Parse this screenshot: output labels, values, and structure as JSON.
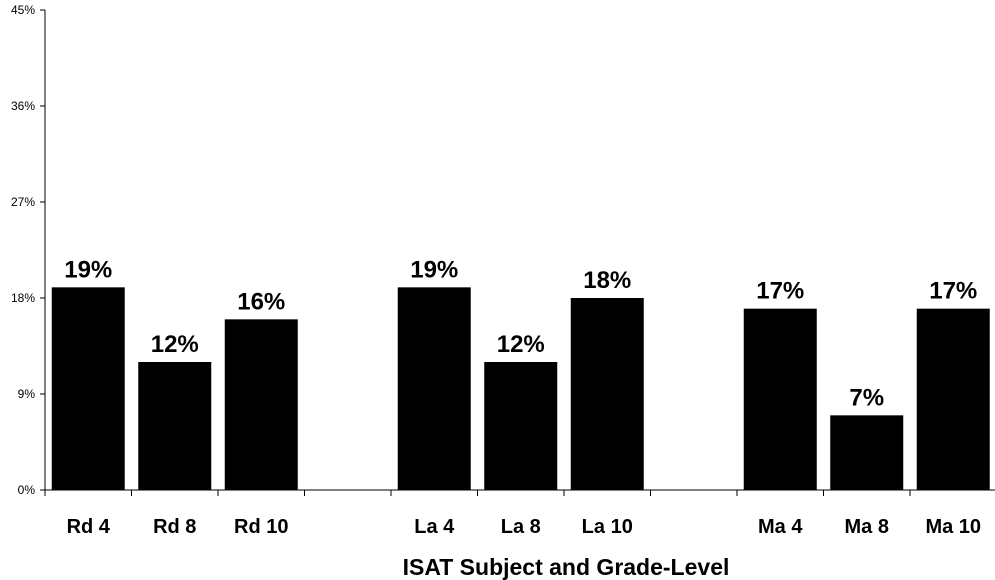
{
  "chart_data": {
    "type": "bar",
    "title": "",
    "xlabel": "ISAT Subject and Grade-Level",
    "ylabel": "",
    "ylim": [
      0,
      45
    ],
    "yticks": [
      "0%",
      "9%",
      "18%",
      "27%",
      "36%",
      "45%"
    ],
    "ytick_values": [
      0,
      9,
      18,
      27,
      36,
      45
    ],
    "categories": [
      "Rd 4",
      "Rd 8",
      "Rd 10",
      "",
      "La 4",
      "La 8",
      "La 10",
      "",
      "Ma 4",
      "Ma 8",
      "Ma 10"
    ],
    "values": [
      19,
      12,
      16,
      null,
      19,
      12,
      18,
      null,
      17,
      7,
      17
    ],
    "data_labels": [
      "19%",
      "12%",
      "16%",
      "",
      "19%",
      "12%",
      "18%",
      "",
      "17%",
      "7%",
      "17%"
    ],
    "bar_color": "#000000",
    "grid": false,
    "legend": "none"
  }
}
